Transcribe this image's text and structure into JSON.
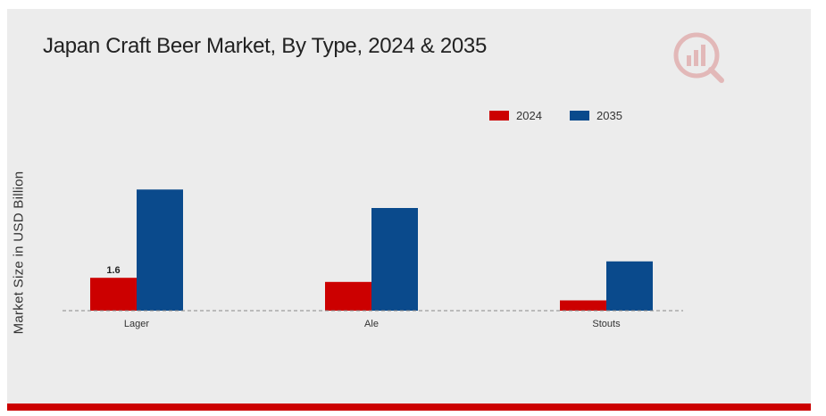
{
  "chart_data": {
    "type": "bar",
    "title": "Japan Craft Beer Market, By Type, 2024 & 2035",
    "xlabel": "",
    "ylabel": "Market Size in USD Billion",
    "categories": [
      "Lager",
      "Ale",
      "Stouts"
    ],
    "series": [
      {
        "name": "2024",
        "color": "#cc0000",
        "values": [
          1.6,
          1.4,
          0.5
        ]
      },
      {
        "name": "2035",
        "color": "#0a4a8c",
        "values": [
          5.9,
          5.0,
          2.4
        ]
      }
    ],
    "data_labels": [
      {
        "series": "2024",
        "category": "Lager",
        "text": "1.6"
      }
    ],
    "ylim": [
      0,
      8
    ],
    "grid": false,
    "legend": "top-right"
  },
  "colors": {
    "accent_bar": "#cc0000",
    "background": "#ececec"
  },
  "logo": {
    "icon": "market-research-logo-icon"
  }
}
